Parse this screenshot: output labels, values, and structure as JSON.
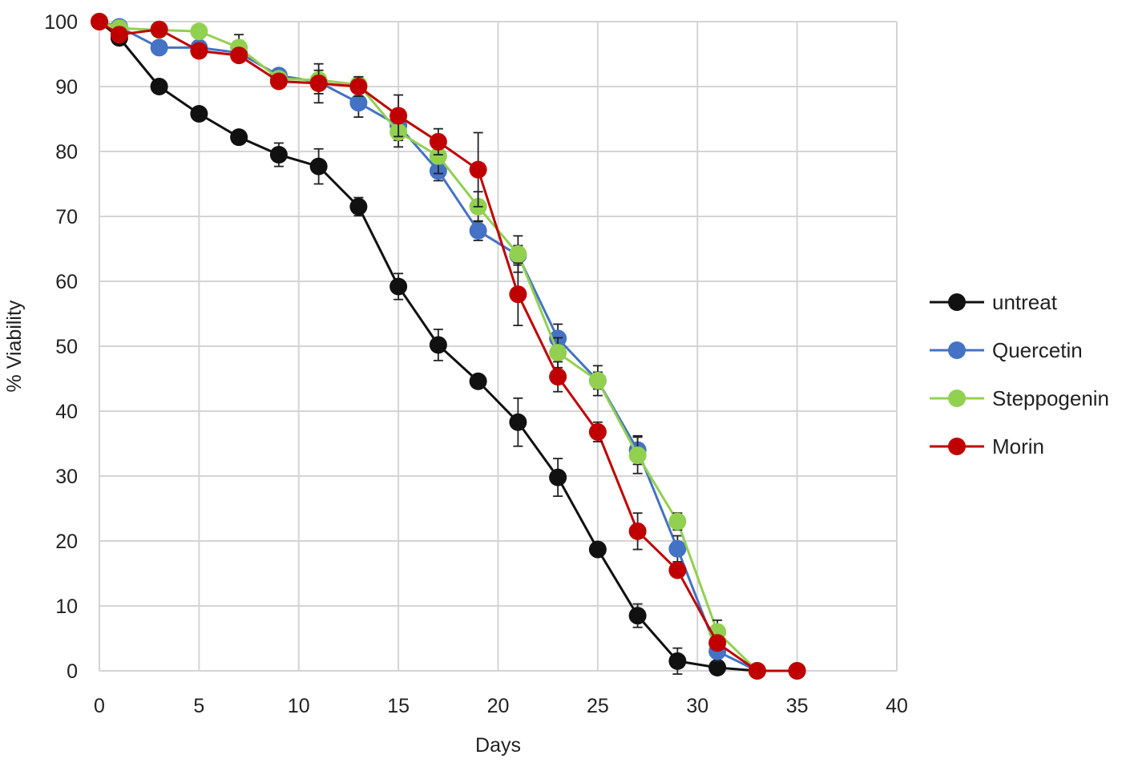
{
  "chart_data": {
    "type": "line",
    "title": "",
    "xlabel": "Days",
    "ylabel": "% Viability",
    "xlim": [
      0,
      40
    ],
    "ylim": [
      0,
      100
    ],
    "xticks": [
      0,
      5,
      10,
      15,
      20,
      25,
      30,
      35,
      40
    ],
    "yticks": [
      0,
      10,
      20,
      30,
      40,
      50,
      60,
      70,
      80,
      90,
      100
    ],
    "grid": true,
    "legend_position": "right",
    "x": [
      0,
      1,
      3,
      5,
      7,
      9,
      11,
      13,
      15,
      17,
      19,
      21,
      23,
      25,
      27,
      29,
      31,
      33,
      35
    ],
    "series": [
      {
        "name": "untreat",
        "color": "#111111",
        "values": [
          100,
          97.5,
          90,
          85.8,
          82.2,
          79.5,
          77.7,
          71.5,
          59.2,
          50.2,
          44.6,
          38.3,
          29.8,
          18.7,
          8.5,
          1.5,
          0.5,
          0,
          0
        ],
        "errors": [
          0,
          0,
          0,
          0,
          0,
          1.8,
          2.7,
          1.4,
          2.0,
          2.4,
          0,
          3.7,
          2.9,
          0,
          1.8,
          2.0,
          0,
          0,
          0
        ]
      },
      {
        "name": "Quercetin",
        "color": "#4472c4",
        "values": [
          100,
          99.2,
          96.0,
          96.0,
          95.2,
          91.7,
          90.7,
          87.5,
          84.0,
          77.0,
          67.8,
          64.0,
          51.2,
          44.7,
          34.0,
          18.8,
          3.0,
          0,
          0
        ],
        "errors": [
          0,
          0,
          0,
          0,
          0,
          0,
          1.8,
          2.2,
          2.3,
          1.5,
          1.5,
          1.5,
          2.2,
          1.3,
          2.2,
          2.0,
          1.5,
          0,
          0
        ]
      },
      {
        "name": "Steppogenin",
        "color": "#92d050",
        "values": [
          100,
          99.0,
          98.7,
          98.5,
          96.0,
          91.2,
          91.0,
          90.3,
          83.0,
          79.3,
          71.5,
          64.2,
          49.0,
          44.7,
          33.2,
          23.0,
          6.0,
          0,
          0
        ],
        "errors": [
          0,
          0,
          0,
          0,
          2.0,
          0,
          0,
          1.2,
          2.3,
          2.7,
          2.3,
          2.8,
          2.3,
          2.3,
          2.8,
          1.3,
          1.8,
          0,
          0
        ]
      },
      {
        "name": "Morin",
        "color": "#c00000",
        "values": [
          100,
          98.0,
          98.8,
          95.5,
          94.8,
          90.8,
          90.5,
          90.0,
          85.5,
          81.5,
          77.2,
          58.0,
          45.3,
          36.8,
          21.5,
          15.5,
          4.3,
          0,
          0
        ],
        "errors": [
          0,
          0,
          0,
          0,
          0,
          0,
          3.0,
          1.5,
          3.2,
          2.0,
          5.7,
          4.8,
          2.3,
          1.5,
          2.8,
          0,
          0,
          0,
          0
        ]
      }
    ]
  }
}
